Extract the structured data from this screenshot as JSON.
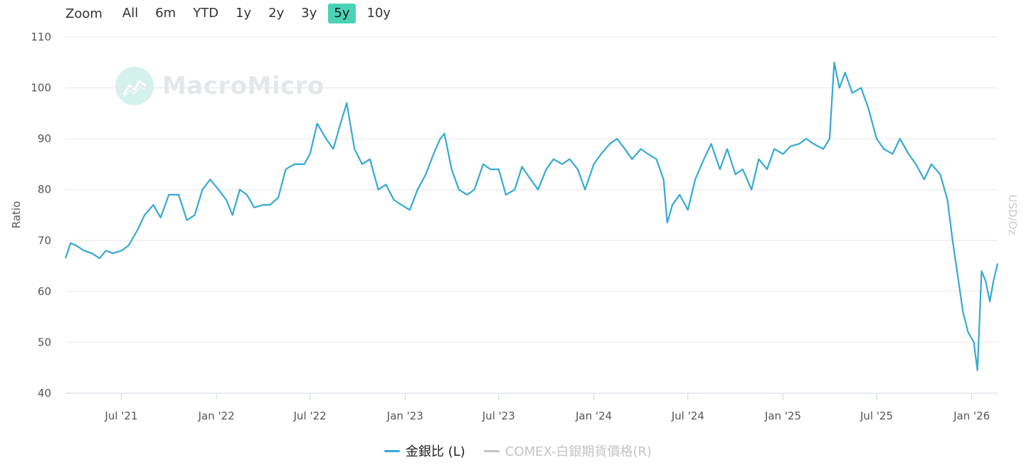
{
  "zoom": {
    "label": "Zoom",
    "options": [
      "All",
      "6m",
      "YTD",
      "1y",
      "2y",
      "3y",
      "5y",
      "10y"
    ],
    "active": "5y"
  },
  "watermark": {
    "text": "MacroMicro"
  },
  "chart_data": {
    "type": "line",
    "ylabel": "Ratio",
    "y2label": "USD/Oz",
    "ylim": [
      40,
      110
    ],
    "yticks": [
      40,
      50,
      60,
      70,
      80,
      90,
      100,
      110
    ],
    "xlim": [
      "2021-03-15",
      "2026-02-20"
    ],
    "xticks": [
      {
        "date": "2021-07-01",
        "label": "Jul '21"
      },
      {
        "date": "2022-01-01",
        "label": "Jan '22"
      },
      {
        "date": "2022-07-01",
        "label": "Jul '22"
      },
      {
        "date": "2023-01-01",
        "label": "Jan '23"
      },
      {
        "date": "2023-07-01",
        "label": "Jul '23"
      },
      {
        "date": "2024-01-01",
        "label": "Jan '24"
      },
      {
        "date": "2024-07-01",
        "label": "Jul '24"
      },
      {
        "date": "2025-01-01",
        "label": "Jan '25"
      },
      {
        "date": "2025-07-01",
        "label": "Jul '25"
      },
      {
        "date": "2026-01-01",
        "label": "Jan '26"
      }
    ],
    "grid": true,
    "legend_position": "bottom-center",
    "series": [
      {
        "name": "金銀比 (L)",
        "color": "#35a9d4",
        "points": [
          [
            "2021-03-15",
            66.5
          ],
          [
            "2021-03-25",
            69.5
          ],
          [
            "2021-04-05",
            69
          ],
          [
            "2021-04-20",
            68
          ],
          [
            "2021-05-05",
            67.5
          ],
          [
            "2021-05-20",
            66.5
          ],
          [
            "2021-06-01",
            68
          ],
          [
            "2021-06-15",
            67.5
          ],
          [
            "2021-07-01",
            68
          ],
          [
            "2021-07-15",
            69
          ],
          [
            "2021-08-01",
            72
          ],
          [
            "2021-08-15",
            75
          ],
          [
            "2021-09-01",
            77
          ],
          [
            "2021-09-15",
            74.5
          ],
          [
            "2021-10-01",
            79
          ],
          [
            "2021-10-20",
            79
          ],
          [
            "2021-11-05",
            74
          ],
          [
            "2021-11-20",
            75
          ],
          [
            "2021-12-05",
            80
          ],
          [
            "2021-12-20",
            82
          ],
          [
            "2022-01-05",
            80
          ],
          [
            "2022-01-20",
            78
          ],
          [
            "2022-02-01",
            75
          ],
          [
            "2022-02-15",
            80
          ],
          [
            "2022-03-01",
            79
          ],
          [
            "2022-03-15",
            76.5
          ],
          [
            "2022-04-01",
            77
          ],
          [
            "2022-04-15",
            77
          ],
          [
            "2022-05-01",
            78.5
          ],
          [
            "2022-05-15",
            84
          ],
          [
            "2022-06-01",
            85
          ],
          [
            "2022-06-20",
            85
          ],
          [
            "2022-07-01",
            87
          ],
          [
            "2022-07-15",
            93
          ],
          [
            "2022-08-01",
            90
          ],
          [
            "2022-08-15",
            88
          ],
          [
            "2022-09-01",
            94
          ],
          [
            "2022-09-10",
            97
          ],
          [
            "2022-09-25",
            88
          ],
          [
            "2022-10-10",
            85
          ],
          [
            "2022-10-25",
            86
          ],
          [
            "2022-11-10",
            80
          ],
          [
            "2022-11-25",
            81
          ],
          [
            "2022-12-10",
            78
          ],
          [
            "2022-12-25",
            77
          ],
          [
            "2023-01-10",
            76
          ],
          [
            "2023-01-25",
            80
          ],
          [
            "2023-02-10",
            83
          ],
          [
            "2023-02-25",
            87
          ],
          [
            "2023-03-10",
            90
          ],
          [
            "2023-03-18",
            91
          ],
          [
            "2023-04-01",
            84
          ],
          [
            "2023-04-15",
            80
          ],
          [
            "2023-05-01",
            79
          ],
          [
            "2023-05-15",
            80
          ],
          [
            "2023-06-01",
            85
          ],
          [
            "2023-06-15",
            84
          ],
          [
            "2023-07-01",
            84
          ],
          [
            "2023-07-15",
            79
          ],
          [
            "2023-08-01",
            80
          ],
          [
            "2023-08-15",
            84.5
          ],
          [
            "2023-09-01",
            82
          ],
          [
            "2023-09-15",
            80
          ],
          [
            "2023-10-01",
            84
          ],
          [
            "2023-10-15",
            86
          ],
          [
            "2023-11-01",
            85
          ],
          [
            "2023-11-15",
            86
          ],
          [
            "2023-12-01",
            84
          ],
          [
            "2023-12-15",
            80
          ],
          [
            "2024-01-01",
            85
          ],
          [
            "2024-01-15",
            87
          ],
          [
            "2024-02-01",
            89
          ],
          [
            "2024-02-15",
            90
          ],
          [
            "2024-03-01",
            88
          ],
          [
            "2024-03-15",
            86
          ],
          [
            "2024-04-01",
            88
          ],
          [
            "2024-04-15",
            87
          ],
          [
            "2024-05-01",
            86
          ],
          [
            "2024-05-15",
            82
          ],
          [
            "2024-05-22",
            73.5
          ],
          [
            "2024-06-01",
            77
          ],
          [
            "2024-06-15",
            79
          ],
          [
            "2024-07-01",
            76
          ],
          [
            "2024-07-15",
            82
          ],
          [
            "2024-08-01",
            86
          ],
          [
            "2024-08-15",
            89
          ],
          [
            "2024-09-01",
            84
          ],
          [
            "2024-09-15",
            88
          ],
          [
            "2024-10-01",
            83
          ],
          [
            "2024-10-15",
            84
          ],
          [
            "2024-11-01",
            80
          ],
          [
            "2024-11-15",
            86
          ],
          [
            "2024-12-01",
            84
          ],
          [
            "2024-12-15",
            88
          ],
          [
            "2025-01-01",
            87
          ],
          [
            "2025-01-15",
            88.5
          ],
          [
            "2025-02-01",
            89
          ],
          [
            "2025-02-15",
            90
          ],
          [
            "2025-03-01",
            89
          ],
          [
            "2025-03-20",
            88
          ],
          [
            "2025-04-01",
            90
          ],
          [
            "2025-04-10",
            105
          ],
          [
            "2025-04-20",
            100
          ],
          [
            "2025-05-01",
            103
          ],
          [
            "2025-05-15",
            99
          ],
          [
            "2025-06-01",
            100
          ],
          [
            "2025-06-15",
            96
          ],
          [
            "2025-07-01",
            90
          ],
          [
            "2025-07-15",
            88
          ],
          [
            "2025-08-01",
            87
          ],
          [
            "2025-08-15",
            90
          ],
          [
            "2025-09-01",
            87
          ],
          [
            "2025-09-15",
            85
          ],
          [
            "2025-10-01",
            82
          ],
          [
            "2025-10-15",
            85
          ],
          [
            "2025-11-01",
            83
          ],
          [
            "2025-11-15",
            78
          ],
          [
            "2025-11-25",
            70
          ],
          [
            "2025-12-05",
            63
          ],
          [
            "2025-12-15",
            56
          ],
          [
            "2025-12-25",
            52
          ],
          [
            "2026-01-05",
            50
          ],
          [
            "2026-01-12",
            44.5
          ],
          [
            "2026-01-20",
            64
          ],
          [
            "2026-01-28",
            62
          ],
          [
            "2026-02-05",
            58
          ],
          [
            "2026-02-12",
            62
          ],
          [
            "2026-02-20",
            65.5
          ]
        ]
      },
      {
        "name": "COMEX-白銀期貨價格(R)",
        "color": "#c4c4c4",
        "hidden": true
      }
    ]
  }
}
